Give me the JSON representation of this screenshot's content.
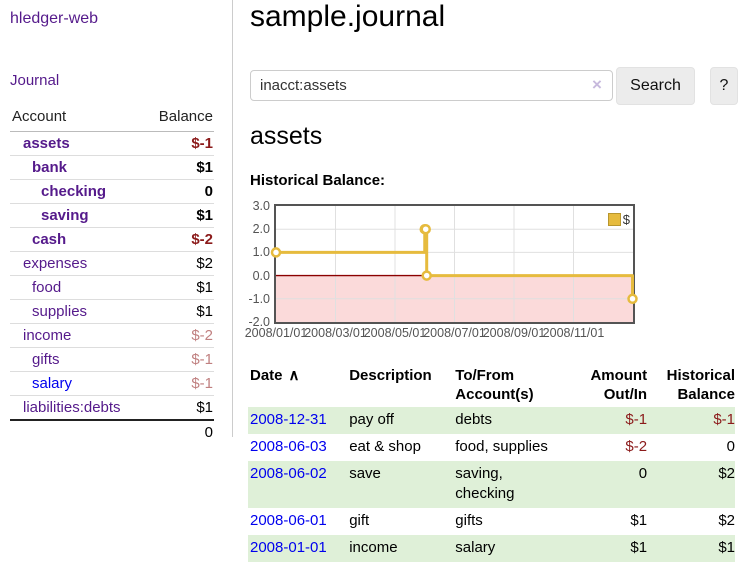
{
  "app": {
    "title": "hledger-web",
    "nav_journal": "Journal"
  },
  "sidebar": {
    "header_account": "Account",
    "header_balance": "Balance",
    "accounts": [
      {
        "name": "assets",
        "balance": "$-1",
        "indent": 1,
        "bold": true,
        "neg": "strong",
        "link": "purple"
      },
      {
        "name": "bank",
        "balance": "$1",
        "indent": 2,
        "bold": true,
        "neg": null,
        "link": "purple"
      },
      {
        "name": "checking",
        "balance": "0",
        "indent": 3,
        "bold": true,
        "neg": null,
        "link": "purple"
      },
      {
        "name": "saving",
        "balance": "$1",
        "indent": 3,
        "bold": true,
        "neg": null,
        "link": "purple"
      },
      {
        "name": "cash",
        "balance": "$-2",
        "indent": 2,
        "bold": true,
        "neg": "strong",
        "link": "purple"
      },
      {
        "name": "expenses",
        "balance": "$2",
        "indent": 1,
        "bold": false,
        "neg": null,
        "link": "purple"
      },
      {
        "name": "food",
        "balance": "$1",
        "indent": 2,
        "bold": false,
        "neg": null,
        "link": "purple"
      },
      {
        "name": "supplies",
        "balance": "$1",
        "indent": 2,
        "bold": false,
        "neg": null,
        "link": "purple"
      },
      {
        "name": "income",
        "balance": "$-2",
        "indent": 1,
        "bold": false,
        "neg": "soft",
        "link": "purple"
      },
      {
        "name": "gifts",
        "balance": "$-1",
        "indent": 2,
        "bold": false,
        "neg": "soft",
        "link": "purple"
      },
      {
        "name": "salary",
        "balance": "$-1",
        "indent": 2,
        "bold": false,
        "neg": "soft",
        "link": "blue"
      },
      {
        "name": "liabilities:debts",
        "balance": "$1",
        "indent": 1,
        "bold": false,
        "neg": null,
        "link": "purple"
      }
    ],
    "total": "0"
  },
  "main": {
    "title": "sample.journal",
    "search": {
      "value": "inacct:assets",
      "clear_icon": "×",
      "button": "Search",
      "help_button": "?"
    },
    "account_heading": "assets",
    "chart_label": "Historical Balance:"
  },
  "chart_data": {
    "type": "line",
    "title": "Historical Balance",
    "series": [
      {
        "name": "$",
        "color": "#e6bb3e",
        "points": [
          [
            "2008-01-01",
            1
          ],
          [
            "2008-06-01",
            2
          ],
          [
            "2008-06-02",
            2
          ],
          [
            "2008-06-03",
            0
          ],
          [
            "2008-12-31",
            -1
          ]
        ]
      }
    ],
    "steps": true,
    "ylim": [
      -2,
      3
    ],
    "yticks": [
      "3.0",
      "2.0",
      "1.0",
      "0.0",
      "-1.0",
      "-2.0"
    ],
    "xticks": [
      "2008/01/01",
      "2008/03/01",
      "2008/05/01",
      "2008/07/01",
      "2008/09/01",
      "2008/11/01"
    ],
    "x_range_months": 12,
    "legend": "$",
    "legend_position": "top-right",
    "grid": true,
    "grid_color": "#e0e0e0",
    "border_color": "#545454",
    "zero_line_color": "#8b0000",
    "negative_region_color": "#fbdada",
    "marker_fill": "#ffffff"
  },
  "register": {
    "columns": [
      {
        "label": "Date",
        "sort_icon": "∧",
        "align": "left"
      },
      {
        "label": "Description",
        "align": "left"
      },
      {
        "label": "To/From",
        "label2": "Account(s)",
        "align": "left"
      },
      {
        "label": "Amount",
        "label2": "Out/In",
        "align": "right"
      },
      {
        "label": "Historical",
        "label2": "Balance",
        "align": "right"
      }
    ],
    "rows": [
      {
        "date": "2008-12-31",
        "description": "pay off",
        "accounts": "debts",
        "amount": "$-1",
        "balance": "$-1",
        "shade": true
      },
      {
        "date": "2008-06-03",
        "description": "eat & shop",
        "accounts": "food, supplies",
        "amount": "$-2",
        "balance": "0",
        "shade": false
      },
      {
        "date": "2008-06-02",
        "description": "save",
        "accounts": "saving,\nchecking",
        "amount": "0",
        "balance": "$2",
        "shade": true
      },
      {
        "date": "2008-06-01",
        "description": "gift",
        "accounts": "gifts",
        "amount": "$1",
        "balance": "$2",
        "shade": false
      },
      {
        "date": "2008-01-01",
        "description": "income",
        "accounts": "salary",
        "amount": "$1",
        "balance": "$1",
        "shade": true
      }
    ]
  },
  "colors": {
    "link_purple": "#551a8b",
    "link_blue": "#0000ee",
    "negative_strong": "#8b1a1a",
    "negative_soft": "#c08080",
    "row_green": "#dff0d8",
    "chart_gold": "#e6bb3e",
    "chart_pink": "#fbdada"
  }
}
